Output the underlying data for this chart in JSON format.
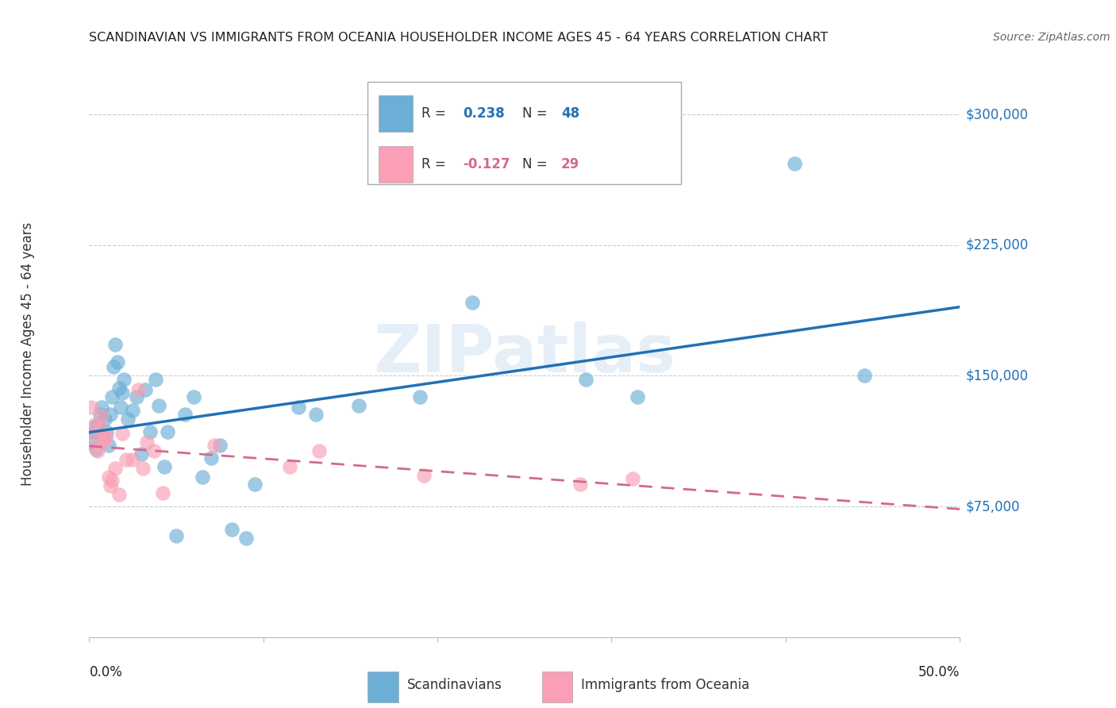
{
  "title": "SCANDINAVIAN VS IMMIGRANTS FROM OCEANIA HOUSEHOLDER INCOME AGES 45 - 64 YEARS CORRELATION CHART",
  "source": "Source: ZipAtlas.com",
  "ylabel": "Householder Income Ages 45 - 64 years",
  "watermark": "ZIPatlas",
  "ytick_labels": [
    "$75,000",
    "$150,000",
    "$225,000",
    "$300,000"
  ],
  "ytick_values": [
    75000,
    150000,
    225000,
    300000
  ],
  "ylim": [
    0,
    325000
  ],
  "xlim": [
    0.0,
    0.5
  ],
  "color_blue": "#6baed6",
  "color_pink": "#fa9fb5",
  "line_color_blue": "#2171b5",
  "line_color_pink": "#d4698a",
  "scandinavian_x": [
    0.001,
    0.002,
    0.003,
    0.004,
    0.005,
    0.006,
    0.007,
    0.008,
    0.009,
    0.01,
    0.011,
    0.012,
    0.013,
    0.014,
    0.015,
    0.016,
    0.017,
    0.018,
    0.019,
    0.02,
    0.022,
    0.025,
    0.027,
    0.03,
    0.032,
    0.035,
    0.038,
    0.04,
    0.043,
    0.045,
    0.05,
    0.055,
    0.06,
    0.065,
    0.07,
    0.075,
    0.082,
    0.09,
    0.095,
    0.12,
    0.13,
    0.155,
    0.19,
    0.22,
    0.285,
    0.315,
    0.405,
    0.445
  ],
  "scandinavian_y": [
    112000,
    120000,
    118000,
    108000,
    122000,
    128000,
    132000,
    115000,
    125000,
    118000,
    110000,
    128000,
    138000,
    155000,
    168000,
    158000,
    143000,
    132000,
    140000,
    148000,
    125000,
    130000,
    138000,
    105000,
    142000,
    118000,
    148000,
    133000,
    98000,
    118000,
    58000,
    128000,
    138000,
    92000,
    103000,
    110000,
    62000,
    57000,
    88000,
    132000,
    128000,
    133000,
    138000,
    192000,
    148000,
    138000,
    272000,
    150000
  ],
  "oceania_x": [
    0.001,
    0.002,
    0.003,
    0.004,
    0.005,
    0.006,
    0.007,
    0.008,
    0.009,
    0.01,
    0.011,
    0.012,
    0.013,
    0.015,
    0.017,
    0.019,
    0.021,
    0.025,
    0.028,
    0.031,
    0.033,
    0.037,
    0.042,
    0.072,
    0.115,
    0.132,
    0.192,
    0.282,
    0.312
  ],
  "oceania_y": [
    132000,
    118000,
    122000,
    110000,
    107000,
    120000,
    127000,
    112000,
    115000,
    115000,
    92000,
    87000,
    90000,
    97000,
    82000,
    117000,
    102000,
    102000,
    142000,
    97000,
    112000,
    107000,
    83000,
    110000,
    98000,
    107000,
    93000,
    88000,
    91000
  ]
}
